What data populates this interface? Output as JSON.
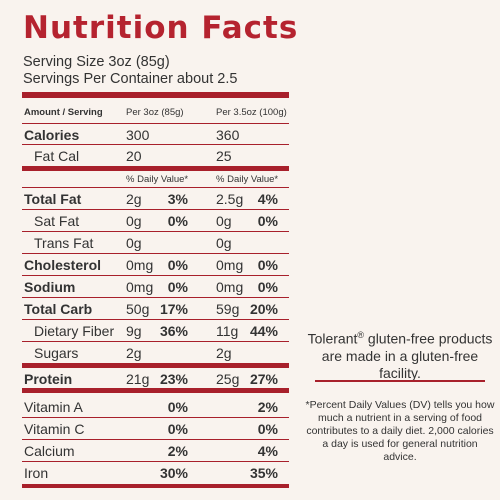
{
  "label": {
    "title": "Nutrition Facts",
    "serving_size": "Serving Size 3oz (85g)",
    "servings_per_container": "Servings Per Container about 2.5",
    "columns": {
      "amount": "Amount / Serving",
      "per_3oz": "Per 3oz (85g)",
      "per_3_5oz": "Per 3.5oz (100g)",
      "dv": "% Daily Value*"
    },
    "calories": {
      "label": "Calories",
      "a": "300",
      "b": "360"
    },
    "fat_cal": {
      "label": "Fat Cal",
      "a": "20",
      "b": "25"
    },
    "nutrients": [
      {
        "label": "Total Fat",
        "a": "2g",
        "a_dv": "3%",
        "b": "2.5g",
        "b_dv": "4%"
      },
      {
        "label": "Sat Fat",
        "a": "0g",
        "a_dv": "0%",
        "b": "0g",
        "b_dv": "0%"
      },
      {
        "label": "Trans Fat",
        "a": "0g",
        "a_dv": "",
        "b": "0g",
        "b_dv": ""
      },
      {
        "label": "Cholesterol",
        "a": "0mg",
        "a_dv": "0%",
        "b": "0mg",
        "b_dv": "0%"
      },
      {
        "label": "Sodium",
        "a": "0mg",
        "a_dv": "0%",
        "b": "0mg",
        "b_dv": "0%"
      },
      {
        "label": "Total Carb",
        "a": "50g",
        "a_dv": "17%",
        "b": "59g",
        "b_dv": "20%"
      },
      {
        "label": "Dietary Fiber",
        "a": "9g",
        "a_dv": "36%",
        "b": "11g",
        "b_dv": "44%"
      },
      {
        "label": "Sugars",
        "a": "2g",
        "a_dv": "",
        "b": "2g",
        "b_dv": ""
      },
      {
        "label": "Protein",
        "a": "21g",
        "a_dv": "23%",
        "b": "25g",
        "b_dv": "27%"
      }
    ],
    "vitamins": [
      {
        "label": "Vitamin A",
        "a_dv": "0%",
        "b_dv": "2%"
      },
      {
        "label": "Vitamin C",
        "a_dv": "0%",
        "b_dv": "0%"
      },
      {
        "label": "Calcium",
        "a_dv": "2%",
        "b_dv": "4%"
      },
      {
        "label": "Iron",
        "a_dv": "30%",
        "b_dv": "35%"
      }
    ]
  },
  "side": {
    "brand": "Tolerant",
    "registered": "®",
    "claim_rest": " gluten-free products are made in a gluten-free facility.",
    "footnote": "*Percent Daily Values (DV) tells you how much a nutrient in a serving of food contributes to a daily diet. 2,000 calories a day is used for general nutrition advice."
  },
  "colors": {
    "accent": "#b5232f",
    "background": "#f9f3ee",
    "text": "#333333"
  }
}
